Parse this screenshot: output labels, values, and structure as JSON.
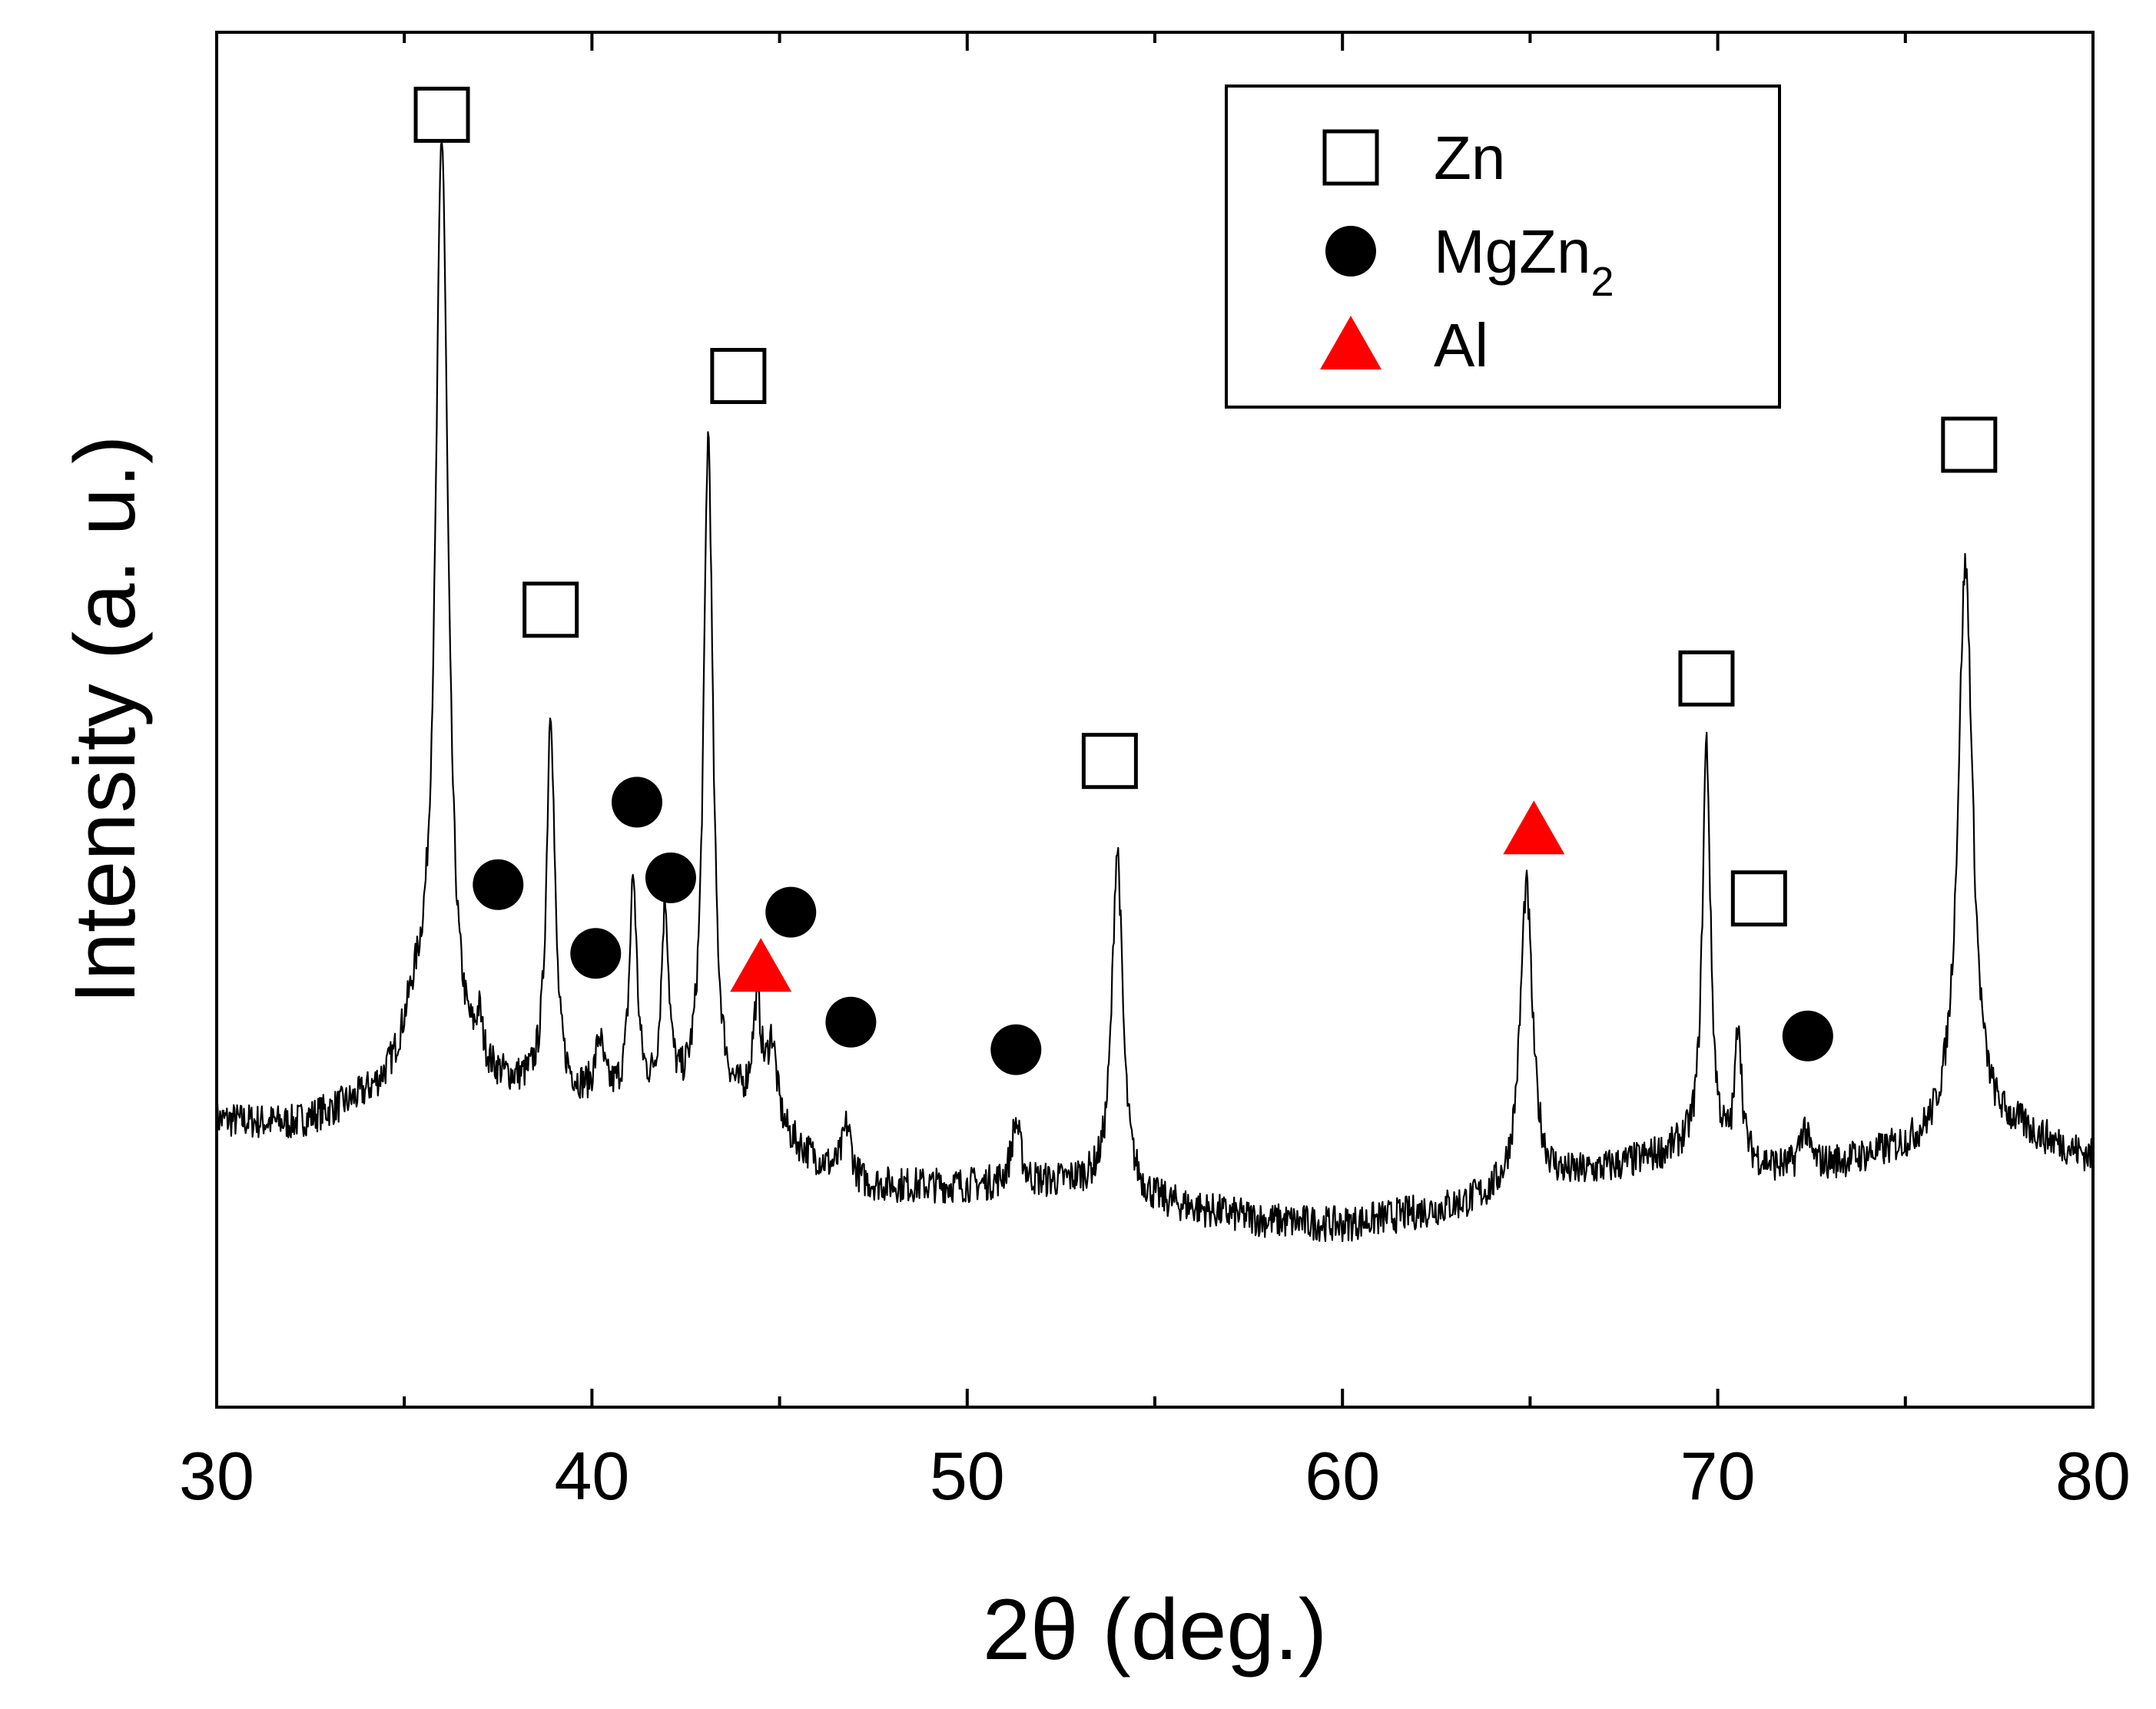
{
  "chart_data": {
    "type": "line",
    "title": "",
    "xlabel": "2θ (deg.)",
    "ylabel": "Intensity (a. u.)",
    "xlim": [
      30,
      80
    ],
    "ylim": [
      0,
      100
    ],
    "x_ticks": [
      30,
      40,
      50,
      60,
      70,
      80
    ],
    "x_minor_ticks": [
      35,
      45,
      55,
      65,
      75
    ],
    "y_ticks_labeled": false,
    "grid": false,
    "legend_position": "top-right",
    "noise": {
      "amplitude": 1.3,
      "seed": 7
    },
    "baseline": [
      [
        30,
        20.8
      ],
      [
        32,
        20.4
      ],
      [
        34,
        21.8
      ],
      [
        37,
        23.0
      ],
      [
        40,
        22.2
      ],
      [
        44,
        21.0
      ],
      [
        47,
        16.0
      ],
      [
        50,
        16.0
      ],
      [
        53,
        16.2
      ],
      [
        55,
        14.8
      ],
      [
        58,
        13.5
      ],
      [
        60,
        13.2
      ],
      [
        63,
        14.5
      ],
      [
        66,
        16.5
      ],
      [
        69,
        18.5
      ],
      [
        72,
        17.0
      ],
      [
        75,
        18.5
      ],
      [
        78,
        19.8
      ],
      [
        80,
        18.0
      ]
    ],
    "peaks": [
      {
        "x": 36.0,
        "height": 68,
        "width": 0.2,
        "phase": "Zn"
      },
      {
        "x": 35.3,
        "height": 5,
        "width": 0.5,
        "phase": "Zn"
      },
      {
        "x": 38.9,
        "height": 28,
        "width": 0.13,
        "phase": "Zn"
      },
      {
        "x": 37.0,
        "height": 3,
        "width": 0.1,
        "phase": "MgZn2"
      },
      {
        "x": 40.2,
        "height": 4,
        "width": 0.12,
        "phase": "MgZn2"
      },
      {
        "x": 41.1,
        "height": 16,
        "width": 0.12,
        "phase": "MgZn2"
      },
      {
        "x": 41.95,
        "height": 14,
        "width": 0.12,
        "phase": "MgZn2"
      },
      {
        "x": 43.1,
        "height": 49,
        "width": 0.15,
        "phase": "Zn"
      },
      {
        "x": 44.4,
        "height": 8,
        "width": 0.15,
        "phase": "Al"
      },
      {
        "x": 44.8,
        "height": 6,
        "width": 0.15,
        "phase": "MgZn2"
      },
      {
        "x": 46.8,
        "height": 4,
        "width": 0.15,
        "phase": "MgZn2"
      },
      {
        "x": 51.3,
        "height": 4.5,
        "width": 0.15,
        "phase": "MgZn2"
      },
      {
        "x": 54.0,
        "height": 25,
        "width": 0.17,
        "phase": "Zn"
      },
      {
        "x": 64.9,
        "height": 22,
        "width": 0.2,
        "phase": "Al"
      },
      {
        "x": 69.7,
        "height": 30,
        "width": 0.13,
        "phase": "Zn"
      },
      {
        "x": 70.55,
        "height": 10,
        "width": 0.1,
        "phase": "Zn"
      },
      {
        "x": 72.3,
        "height": 3,
        "width": 0.15,
        "phase": "MgZn2"
      },
      {
        "x": 76.6,
        "height": 42,
        "width": 0.24,
        "phase": "Zn"
      }
    ],
    "markers": [
      {
        "symbol": "square",
        "phase": "Zn",
        "x": 36.0,
        "y": 94
      },
      {
        "symbol": "square",
        "phase": "Zn",
        "x": 38.9,
        "y": 58
      },
      {
        "symbol": "square",
        "phase": "Zn",
        "x": 43.9,
        "y": 75
      },
      {
        "symbol": "square",
        "phase": "Zn",
        "x": 53.8,
        "y": 47
      },
      {
        "symbol": "square",
        "phase": "Zn",
        "x": 69.7,
        "y": 53
      },
      {
        "symbol": "square",
        "phase": "Zn",
        "x": 71.1,
        "y": 37
      },
      {
        "symbol": "square",
        "phase": "Zn",
        "x": 76.7,
        "y": 70
      },
      {
        "symbol": "circle",
        "phase": "MgZn2",
        "x": 37.5,
        "y": 38
      },
      {
        "symbol": "circle",
        "phase": "MgZn2",
        "x": 40.1,
        "y": 33
      },
      {
        "symbol": "circle",
        "phase": "MgZn2",
        "x": 41.2,
        "y": 44
      },
      {
        "symbol": "circle",
        "phase": "MgZn2",
        "x": 42.1,
        "y": 38.5
      },
      {
        "symbol": "circle",
        "phase": "MgZn2",
        "x": 45.3,
        "y": 36
      },
      {
        "symbol": "circle",
        "phase": "MgZn2",
        "x": 46.9,
        "y": 28
      },
      {
        "symbol": "circle",
        "phase": "MgZn2",
        "x": 51.3,
        "y": 26
      },
      {
        "symbol": "circle",
        "phase": "MgZn2",
        "x": 72.4,
        "y": 27
      },
      {
        "symbol": "triangle",
        "phase": "Al",
        "x": 44.5,
        "y": 32
      },
      {
        "symbol": "triangle",
        "phase": "Al",
        "x": 65.1,
        "y": 42
      }
    ],
    "legend": [
      {
        "symbol": "square",
        "label": "Zn",
        "sub": ""
      },
      {
        "symbol": "circle",
        "label": "MgZn",
        "sub": "2"
      },
      {
        "symbol": "triangle",
        "label": "Al",
        "sub": ""
      }
    ],
    "colors": {
      "line": "#000000",
      "circle": "#000000",
      "triangle": "#ff0000",
      "square": "#ffffff"
    }
  }
}
